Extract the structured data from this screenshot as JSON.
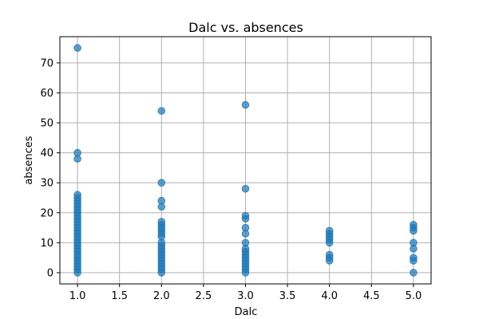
{
  "chart_data": {
    "type": "scatter",
    "title": "Dalc vs. absences",
    "xlabel": "Dalc",
    "ylabel": "absences",
    "xlim": [
      0.79,
      5.21
    ],
    "ylim": [
      -3.75,
      78.75
    ],
    "xticks": [
      "1.0",
      "1.5",
      "2.0",
      "2.5",
      "3.0",
      "3.5",
      "4.0",
      "4.5",
      "5.0"
    ],
    "yticks": [
      "0",
      "10",
      "20",
      "30",
      "40",
      "50",
      "60",
      "70"
    ],
    "grid": true,
    "marker_color": "#1f77b4",
    "series": [
      {
        "x": [
          1,
          1,
          1,
          1,
          1,
          1,
          1,
          1,
          1,
          1,
          1,
          1,
          1,
          1,
          1,
          1,
          1,
          1,
          1,
          1,
          1,
          1,
          1,
          1,
          1,
          1,
          1,
          1,
          1,
          1,
          2,
          2,
          2,
          2,
          2,
          2,
          2,
          2,
          2,
          2,
          2,
          2,
          2,
          2,
          2,
          2,
          2,
          2,
          2,
          2,
          2,
          3,
          3,
          3,
          3,
          3,
          3,
          3,
          3,
          3,
          3,
          3,
          3,
          3,
          3,
          3,
          3,
          4,
          4,
          4,
          4,
          4,
          4,
          4,
          4,
          5,
          5,
          5,
          5,
          5,
          5,
          5,
          5
        ],
        "y": [
          0,
          1,
          2,
          3,
          4,
          5,
          6,
          7,
          8,
          9,
          10,
          11,
          12,
          13,
          14,
          15,
          16,
          17,
          18,
          19,
          20,
          21,
          22,
          23,
          24,
          25,
          26,
          38,
          40,
          75,
          0,
          1,
          2,
          3,
          4,
          5,
          6,
          7,
          8,
          9,
          10,
          12,
          13,
          14,
          15,
          16,
          17,
          22,
          24,
          30,
          54,
          0,
          1,
          2,
          3,
          4,
          5,
          6,
          7,
          8,
          10,
          13,
          15,
          18,
          19,
          28,
          56,
          4,
          5,
          6,
          10,
          11,
          12,
          13,
          14,
          0,
          4,
          5,
          8,
          10,
          14,
          15,
          16
        ]
      }
    ]
  }
}
